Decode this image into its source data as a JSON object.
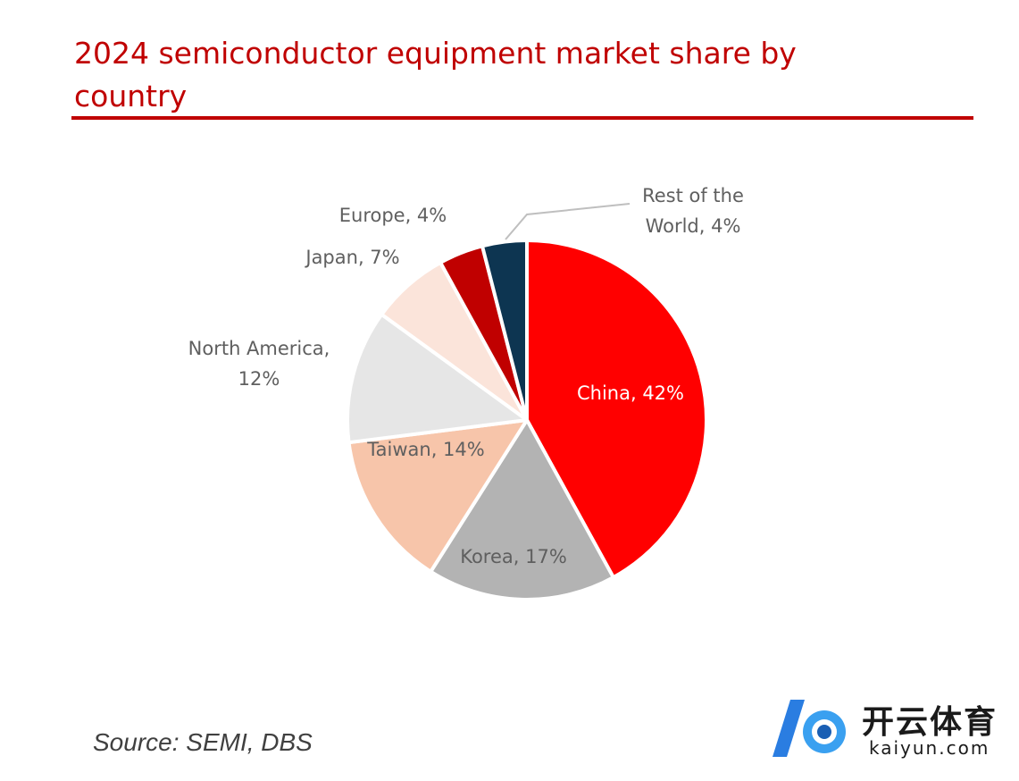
{
  "chart_data": {
    "type": "pie",
    "title": "2024 semiconductor equipment market share by country",
    "values": [
      42,
      17,
      14,
      12,
      7,
      4,
      4
    ],
    "value_labels": [
      "China, 42%",
      "Korea, 17%",
      "Taiwan, 14%",
      "North America, 12%",
      "Japan, 7%",
      "Europe, 4%",
      "Rest of the World, 4%"
    ],
    "colors": [
      "#ff0000",
      "#b3b3b3",
      "#f7c5aa",
      "#e6e6e6",
      "#fbe4da",
      "#c00000",
      "#0d3551"
    ],
    "source": "Source: SEMI, DBS"
  },
  "logo": {
    "name": "开云体育",
    "site": "kaiyun.com"
  }
}
